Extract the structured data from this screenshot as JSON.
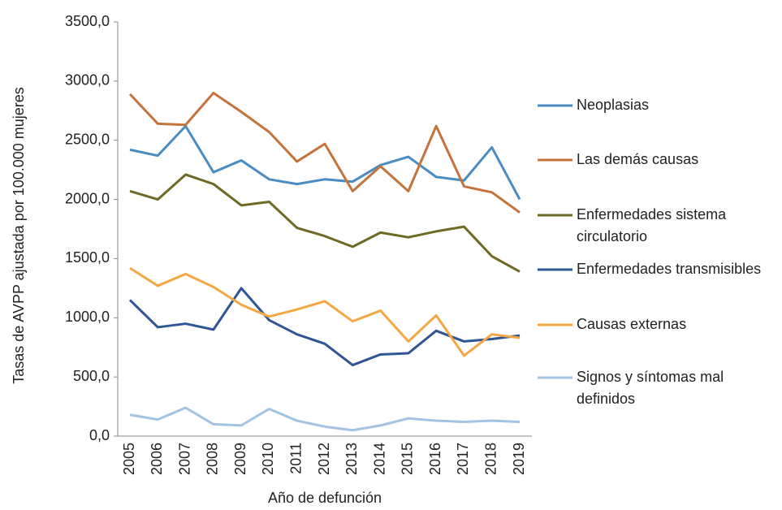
{
  "chart_data": {
    "type": "line",
    "x_label": "Año de defunción",
    "y_label": "Tasas de AVPP ajustada por 100.000 mujeres",
    "categories": [
      "2005",
      "2006",
      "2007",
      "2008",
      "2009",
      "2010",
      "2011",
      "2012",
      "2013",
      "2014",
      "2015",
      "2016",
      "2017",
      "2018",
      "2019"
    ],
    "ylim": [
      0,
      3500
    ],
    "yticks": [
      {
        "value": 0,
        "label": "0,0"
      },
      {
        "value": 500,
        "label": "500,0"
      },
      {
        "value": 1000,
        "label": "1000,0"
      },
      {
        "value": 1500,
        "label": "1500,0"
      },
      {
        "value": 2000,
        "label": "2000,0"
      },
      {
        "value": 2500,
        "label": "2500,0"
      },
      {
        "value": 3000,
        "label": "3000,0"
      },
      {
        "value": 3500,
        "label": "3500,0"
      }
    ],
    "legend": "right",
    "series": [
      {
        "name": "Neoplasias",
        "color": "#4a8cc2",
        "values": [
          2420,
          2370,
          2620,
          2230,
          2330,
          2170,
          2130,
          2170,
          2150,
          2290,
          2360,
          2190,
          2160,
          2440,
          2000
        ]
      },
      {
        "name": "Las demás causas",
        "color": "#c4733c",
        "values": [
          2890,
          2640,
          2630,
          2900,
          2740,
          2570,
          2320,
          2470,
          2070,
          2280,
          2070,
          2620,
          2110,
          2060,
          1890
        ]
      },
      {
        "name": "Enfermedades sistema circulatorio",
        "color": "#6e6a25",
        "values": [
          2070,
          2000,
          2210,
          2130,
          1950,
          1980,
          1760,
          1690,
          1600,
          1720,
          1680,
          1730,
          1770,
          1520,
          1390
        ]
      },
      {
        "name": "Enfermedades transmisibles",
        "color": "#2f5597",
        "values": [
          1150,
          920,
          950,
          900,
          1250,
          980,
          860,
          780,
          600,
          690,
          700,
          890,
          800,
          820,
          850
        ]
      },
      {
        "name": "Causas externas",
        "color": "#f4a742",
        "values": [
          1420,
          1270,
          1370,
          1260,
          1110,
          1010,
          1070,
          1140,
          970,
          1060,
          800,
          1020,
          680,
          860,
          830
        ]
      },
      {
        "name": "Signos y síntomas mal definidos",
        "color": "#a3c3e3",
        "values": [
          180,
          140,
          240,
          100,
          90,
          230,
          130,
          80,
          50,
          90,
          150,
          130,
          120,
          130,
          120
        ]
      }
    ]
  }
}
